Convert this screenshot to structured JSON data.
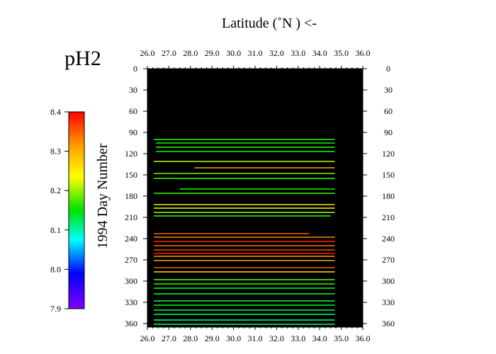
{
  "chart_data": {
    "type": "heatmap",
    "title": "pH2",
    "xlabel": "Latitude  (˚N )  <-",
    "ylabel": "1994  Day Number",
    "x_ticks": [
      "26.0",
      "27.0",
      "28.0",
      "29.0",
      "30.0",
      "31.0",
      "32.0",
      "33.0",
      "34.0",
      "35.0",
      "36.0"
    ],
    "y_ticks": [
      "0",
      "30",
      "60",
      "90",
      "120",
      "150",
      "180",
      "210",
      "240",
      "270",
      "300",
      "330",
      "360"
    ],
    "xlim": [
      26.0,
      36.0
    ],
    "ylim": [
      0,
      365
    ],
    "colorbar": {
      "min": 7.9,
      "max": 8.4,
      "ticks": [
        "8.4",
        "8.3",
        "8.2",
        "8.1",
        "8.0",
        "7.9"
      ]
    },
    "background_color": "#000000",
    "series": [
      {
        "day": 100,
        "lat_start": 26.3,
        "lat_end": 34.7,
        "value": 8.2
      },
      {
        "day": 105,
        "lat_start": 26.4,
        "lat_end": 34.7,
        "value": 8.18
      },
      {
        "day": 111,
        "lat_start": 26.4,
        "lat_end": 34.7,
        "value": 8.2
      },
      {
        "day": 117,
        "lat_start": 26.4,
        "lat_end": 34.7,
        "value": 8.17
      },
      {
        "day": 131,
        "lat_start": 26.3,
        "lat_end": 34.7,
        "value": 8.26
      },
      {
        "day": 140,
        "lat_start": 28.2,
        "lat_end": 34.7,
        "value": 8.33
      },
      {
        "day": 148,
        "lat_start": 26.3,
        "lat_end": 34.7,
        "value": 8.22
      },
      {
        "day": 155,
        "lat_start": 26.3,
        "lat_end": 34.7,
        "value": 8.2
      },
      {
        "day": 170,
        "lat_start": 27.5,
        "lat_end": 34.7,
        "value": 8.18
      },
      {
        "day": 176,
        "lat_start": 26.3,
        "lat_end": 34.7,
        "value": 8.2
      },
      {
        "day": 192,
        "lat_start": 26.3,
        "lat_end": 34.7,
        "value": 8.3
      },
      {
        "day": 197,
        "lat_start": 26.3,
        "lat_end": 34.7,
        "value": 8.28
      },
      {
        "day": 203,
        "lat_start": 26.3,
        "lat_end": 34.7,
        "value": 8.25
      },
      {
        "day": 208,
        "lat_start": 26.3,
        "lat_end": 34.5,
        "value": 8.2
      },
      {
        "day": 233,
        "lat_start": 26.3,
        "lat_end": 33.5,
        "value": 8.36
      },
      {
        "day": 238,
        "lat_start": 26.3,
        "lat_end": 34.7,
        "value": 8.34
      },
      {
        "day": 244,
        "lat_start": 26.3,
        "lat_end": 34.7,
        "value": 8.38
      },
      {
        "day": 250,
        "lat_start": 26.3,
        "lat_end": 34.7,
        "value": 8.35
      },
      {
        "day": 256,
        "lat_start": 26.3,
        "lat_end": 34.7,
        "value": 8.37
      },
      {
        "day": 261,
        "lat_start": 26.3,
        "lat_end": 34.7,
        "value": 8.39
      },
      {
        "day": 265,
        "lat_start": 26.3,
        "lat_end": 34.7,
        "value": 8.33
      },
      {
        "day": 271,
        "lat_start": 26.3,
        "lat_end": 34.7,
        "value": 8.33
      },
      {
        "day": 281,
        "lat_start": 26.3,
        "lat_end": 34.7,
        "value": 8.36
      },
      {
        "day": 287,
        "lat_start": 26.3,
        "lat_end": 34.7,
        "value": 8.3
      },
      {
        "day": 298,
        "lat_start": 26.3,
        "lat_end": 34.7,
        "value": 8.22
      },
      {
        "day": 304,
        "lat_start": 26.3,
        "lat_end": 34.7,
        "value": 8.2
      },
      {
        "day": 310,
        "lat_start": 26.3,
        "lat_end": 34.7,
        "value": 8.18
      },
      {
        "day": 318,
        "lat_start": 26.3,
        "lat_end": 34.7,
        "value": 8.16
      },
      {
        "day": 328,
        "lat_start": 26.3,
        "lat_end": 34.7,
        "value": 8.14
      },
      {
        "day": 334,
        "lat_start": 26.3,
        "lat_end": 34.7,
        "value": 8.17
      },
      {
        "day": 341,
        "lat_start": 26.3,
        "lat_end": 34.7,
        "value": 8.15
      },
      {
        "day": 347,
        "lat_start": 26.3,
        "lat_end": 34.7,
        "value": 8.13
      },
      {
        "day": 355,
        "lat_start": 26.3,
        "lat_end": 34.7,
        "value": 8.12
      },
      {
        "day": 361,
        "lat_start": 26.3,
        "lat_end": 34.7,
        "value": 8.14
      }
    ]
  }
}
